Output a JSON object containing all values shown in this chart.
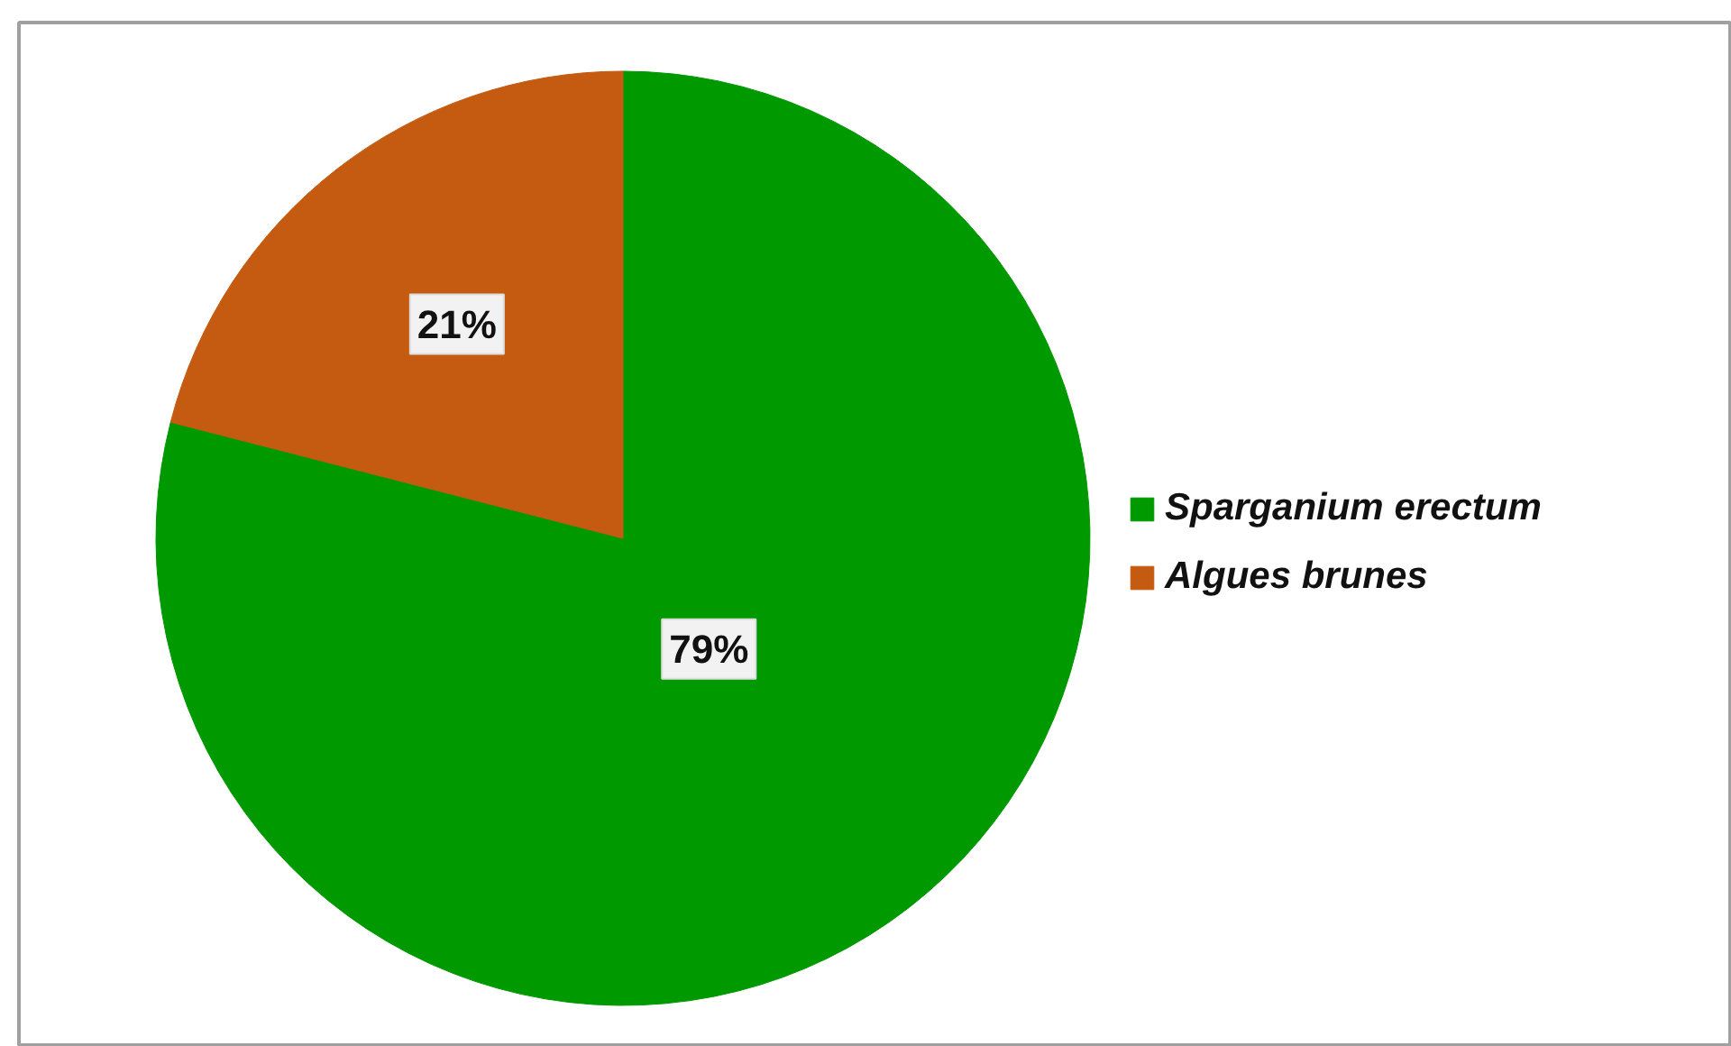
{
  "chart_data": {
    "type": "pie",
    "categories": [
      "Sparganium erectum",
      "Algues brunes"
    ],
    "values": [
      79,
      21
    ],
    "colors": [
      "#009900",
      "#c55a11"
    ],
    "value_labels": [
      "79%",
      "21%"
    ],
    "legend": "right"
  }
}
